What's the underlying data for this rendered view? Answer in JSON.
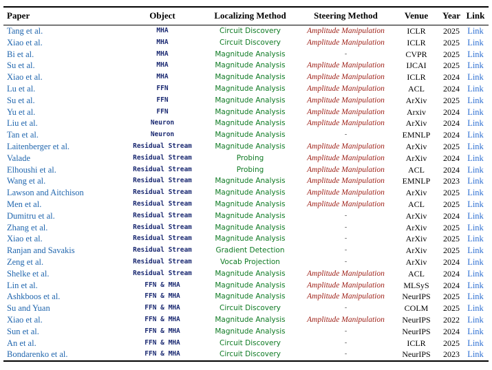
{
  "colors": {
    "paper_blue": "#2066ae",
    "link_blue": "#2d6fd2",
    "object_navy": "#1b2a72",
    "method_green": "#0e7a23",
    "steer_red": "#9c1c13"
  },
  "table": {
    "columns": [
      "Paper",
      "Object",
      "Localizing Method",
      "Steering Method",
      "Venue",
      "Year",
      "Link"
    ],
    "rows": [
      {
        "paper": "Tang et al.",
        "object": "MHA",
        "localizing_method": "Circuit Discovery",
        "steering_method": "Amplitude Manipulation",
        "venue": "ICLR",
        "year": "2025",
        "link": "Link"
      },
      {
        "paper": "Xiao et al.",
        "object": "MHA",
        "localizing_method": "Circuit Discovery",
        "steering_method": "Amplitude Manipulation",
        "venue": "ICLR",
        "year": "2025",
        "link": "Link"
      },
      {
        "paper": "Bi et al.",
        "object": "MHA",
        "localizing_method": "Magnitude Analysis",
        "steering_method": "-",
        "venue": "CVPR",
        "year": "2025",
        "link": "Link"
      },
      {
        "paper": "Su et al.",
        "object": "MHA",
        "localizing_method": "Magnitude Analysis",
        "steering_method": "Amplitude Manipulation",
        "venue": "IJCAI",
        "year": "2025",
        "link": "Link"
      },
      {
        "paper": "Xiao et al.",
        "object": "MHA",
        "localizing_method": "Magnitude Analysis",
        "steering_method": "Amplitude Manipulation",
        "venue": "ICLR",
        "year": "2024",
        "link": "Link"
      },
      {
        "paper": "Lu et al.",
        "object": "FFN",
        "localizing_method": "Magnitude Analysis",
        "steering_method": "Amplitude Manipulation",
        "venue": "ACL",
        "year": "2024",
        "link": "Link"
      },
      {
        "paper": "Su et al.",
        "object": "FFN",
        "localizing_method": "Magnitude Analysis",
        "steering_method": "Amplitude Manipulation",
        "venue": "ArXiv",
        "year": "2025",
        "link": "Link"
      },
      {
        "paper": "Yu et al.",
        "object": "FFN",
        "localizing_method": "Magnitude Analysis",
        "steering_method": "Amplitude Manipulation",
        "venue": "Arxiv",
        "year": "2024",
        "link": "Link"
      },
      {
        "paper": "Liu et al.",
        "object": "Neuron",
        "localizing_method": "Magnitude Analysis",
        "steering_method": "Amplitude Manipulation",
        "venue": "ArXiv",
        "year": "2024",
        "link": "Link"
      },
      {
        "paper": "Tan et al.",
        "object": "Neuron",
        "localizing_method": "Magnitude Analysis",
        "steering_method": "-",
        "venue": "EMNLP",
        "year": "2024",
        "link": "Link"
      },
      {
        "paper": "Laitenberger et al.",
        "object": "Residual Stream",
        "localizing_method": "Magnitude Analysis",
        "steering_method": "Amplitude Manipulation",
        "venue": "ArXiv",
        "year": "2025",
        "link": "Link"
      },
      {
        "paper": "Valade",
        "object": "Residual Stream",
        "localizing_method": "Probing",
        "steering_method": "Amplitude Manipulation",
        "venue": "ArXiv",
        "year": "2024",
        "link": "Link"
      },
      {
        "paper": "Elhoushi et al.",
        "object": "Residual Stream",
        "localizing_method": "Probing",
        "steering_method": "Amplitude Manipulation",
        "venue": "ACL",
        "year": "2024",
        "link": "Link"
      },
      {
        "paper": "Wang et al.",
        "object": "Residual Stream",
        "localizing_method": "Magnitude Analysis",
        "steering_method": "Amplitude Manipulation",
        "venue": "EMNLP",
        "year": "2023",
        "link": "Link"
      },
      {
        "paper": "Lawson and Aitchison",
        "object": "Residual Stream",
        "localizing_method": "Magnitude Analysis",
        "steering_method": "Amplitude Manipulation",
        "venue": "ArXiv",
        "year": "2025",
        "link": "Link"
      },
      {
        "paper": "Men et al.",
        "object": "Residual Stream",
        "localizing_method": "Magnitude Analysis",
        "steering_method": "Amplitude Manipulation",
        "venue": "ACL",
        "year": "2025",
        "link": "Link"
      },
      {
        "paper": "Dumitru et al.",
        "object": "Residual Stream",
        "localizing_method": "Magnitude Analysis",
        "steering_method": "-",
        "venue": "ArXiv",
        "year": "2024",
        "link": "Link"
      },
      {
        "paper": "Zhang et al.",
        "object": "Residual Stream",
        "localizing_method": "Magnitude Analysis",
        "steering_method": "-",
        "venue": "ArXiv",
        "year": "2025",
        "link": "Link"
      },
      {
        "paper": "Xiao et al.",
        "object": "Residual Stream",
        "localizing_method": "Magnitude Analysis",
        "steering_method": "-",
        "venue": "ArXiv",
        "year": "2025",
        "link": "Link"
      },
      {
        "paper": "Ranjan and Savakis",
        "object": "Residual Stream",
        "localizing_method": "Gradient Detection",
        "steering_method": "-",
        "venue": "ArXiv",
        "year": "2025",
        "link": "Link"
      },
      {
        "paper": "Zeng et al.",
        "object": "Residual Stream",
        "localizing_method": "Vocab Projection",
        "steering_method": "-",
        "venue": "ArXiv",
        "year": "2024",
        "link": "Link"
      },
      {
        "paper": "Shelke et al.",
        "object": "Residual Stream",
        "localizing_method": "Magnitude Analysis",
        "steering_method": "Amplitude Manipulation",
        "venue": "ACL",
        "year": "2024",
        "link": "Link"
      },
      {
        "paper": "Lin et al.",
        "object": "FFN & MHA",
        "localizing_method": "Magnitude Analysis",
        "steering_method": "Amplitude Manipulation",
        "venue": "MLSyS",
        "year": "2024",
        "link": "Link"
      },
      {
        "paper": "Ashkboos et al.",
        "object": "FFN & MHA",
        "localizing_method": "Magnitude Analysis",
        "steering_method": "Amplitude Manipulation",
        "venue": "NeurIPS",
        "year": "2025",
        "link": "Link"
      },
      {
        "paper": "Su and Yuan",
        "object": "FFN & MHA",
        "localizing_method": "Circuit Discovery",
        "steering_method": "-",
        "venue": "COLM",
        "year": "2025",
        "link": "Link"
      },
      {
        "paper": "Xiao et al.",
        "object": "FFN & MHA",
        "localizing_method": "Magnitude Analysis",
        "steering_method": "Amplitude Manipulation",
        "venue": "NeurIPS",
        "year": "2022",
        "link": "Link"
      },
      {
        "paper": "Sun et al.",
        "object": "FFN & MHA",
        "localizing_method": "Magnitude Analysis",
        "steering_method": "-",
        "venue": "NeurIPS",
        "year": "2024",
        "link": "Link"
      },
      {
        "paper": "An et al.",
        "object": "FFN & MHA",
        "localizing_method": "Circuit Discovery",
        "steering_method": "-",
        "venue": "ICLR",
        "year": "2025",
        "link": "Link"
      },
      {
        "paper": "Bondarenko et al.",
        "object": "FFN & MHA",
        "localizing_method": "Circuit Discovery",
        "steering_method": "-",
        "venue": "NeurIPS",
        "year": "2023",
        "link": "Link"
      }
    ]
  }
}
